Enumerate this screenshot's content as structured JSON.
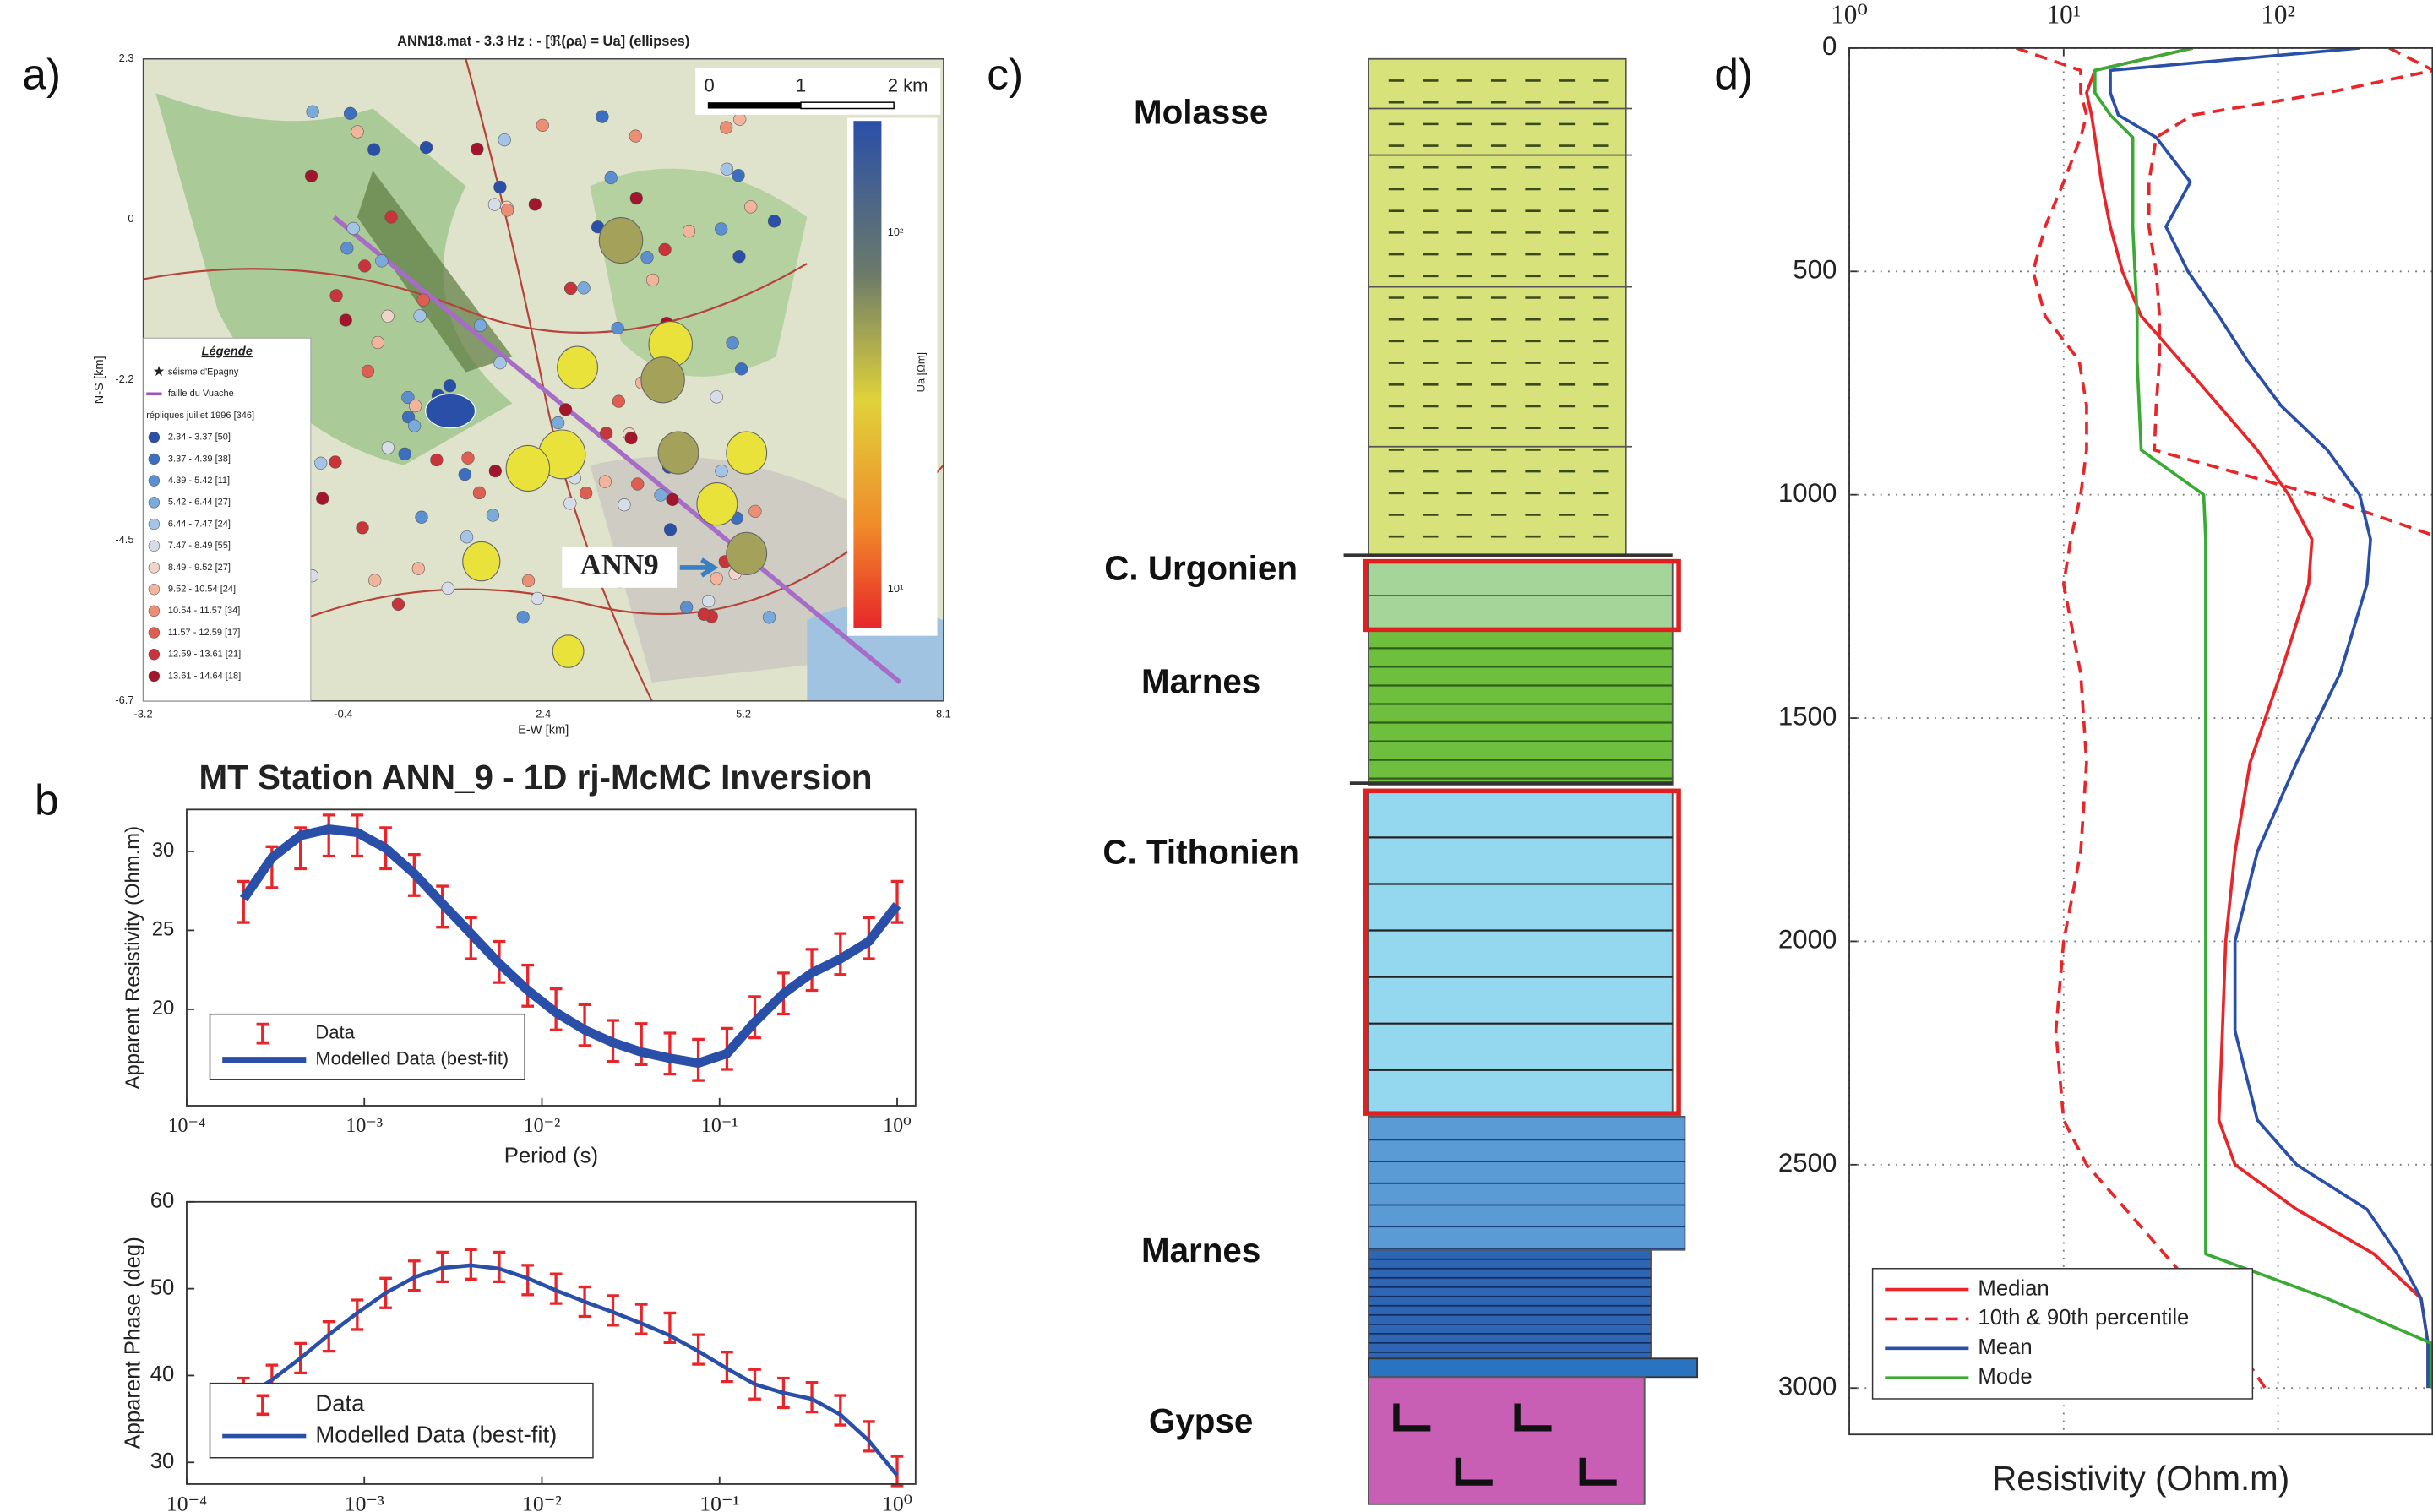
{
  "panel_labels": {
    "a": "a)",
    "b": "b",
    "c": "c)",
    "d": "d)"
  },
  "map": {
    "title": "ANN18.mat - 3.3 Hz : - [ℜ(ρa) = Ua] (ellipses)",
    "xlabel": "E-W [km]",
    "ylabel": "N-S [km]",
    "xticks": [
      "-3.2",
      "-0.4",
      "2.4",
      "5.2",
      "8.1"
    ],
    "yticks": [
      "2.3",
      "0",
      "-2.2",
      "-4.5",
      "-6.7"
    ],
    "scale_labels": [
      "0",
      "1",
      "2 km"
    ],
    "colorbar_label": "Ua [Ωm]",
    "colorbar_ticks": [
      "10²",
      "10¹"
    ],
    "legend_title": "Légende",
    "legend_items": [
      {
        "label": "séisme d'Epagny",
        "color": "#000000"
      },
      {
        "label": "faille du Vuache",
        "color": "#9b59b6"
      },
      {
        "label": "répliques juillet 1996 [346]",
        "color": "#ffffff"
      },
      {
        "label": "2.34 - 3.37 [50]",
        "color": "#2a4fa8"
      },
      {
        "label": "3.37 - 4.39 [38]",
        "color": "#3d6fc0"
      },
      {
        "label": "4.39 - 5.42 [11]",
        "color": "#5b8fd0"
      },
      {
        "label": "5.42 - 6.44 [27]",
        "color": "#7aa9dc"
      },
      {
        "label": "6.44 - 7.47 [24]",
        "color": "#a3c4e6"
      },
      {
        "label": "7.47 - 8.49 [55]",
        "color": "#d6dde8"
      },
      {
        "label": "8.49 - 9.52 [27]",
        "color": "#efd5c8"
      },
      {
        "label": "9.52 - 10.54 [24]",
        "color": "#f2b59c"
      },
      {
        "label": "10.54 - 11.57 [34]",
        "color": "#ec8e74"
      },
      {
        "label": "11.57 - 12.59 [17]",
        "color": "#de5f52"
      },
      {
        "label": "12.59 - 13.61 [21]",
        "color": "#c9343a"
      },
      {
        "label": "13.61 - 14.64 [18]",
        "color": "#a3152a"
      }
    ],
    "station_label": "ANN9"
  },
  "column": {
    "layers": [
      "Molasse",
      "C. Urgonien",
      "Marnes",
      "C. Tithonien",
      "Marnes",
      "Gypse"
    ]
  },
  "chart_data": [
    {
      "type": "line",
      "title": "MT Station ANN_9 - 1D rj-McMC Inversion",
      "ylabel": "Apparent Resistivity (Ohm.m)",
      "xlabel": "Period (s)",
      "xlog": true,
      "xlim": [
        0.0001,
        1.27
      ],
      "xticks": [
        {
          "value": 0.0001,
          "label": "10⁻⁴"
        },
        {
          "value": 0.001,
          "label": "10⁻³"
        },
        {
          "value": 0.01,
          "label": "10⁻²"
        },
        {
          "value": 0.1,
          "label": "10⁻¹"
        },
        {
          "value": 1,
          "label": "10⁰"
        }
      ],
      "ylim": [
        13.9,
        32.65
      ],
      "yticks": [
        20,
        25,
        30
      ],
      "legend": "lower-left",
      "x": [
        0.000209,
        0.000302,
        0.000437,
        0.000631,
        0.000912,
        0.00132,
        0.00191,
        0.00275,
        0.00398,
        0.00575,
        0.00832,
        0.012,
        0.0174,
        0.0251,
        0.0363,
        0.0525,
        0.0759,
        0.11,
        0.158,
        0.229,
        0.331,
        0.479,
        0.692,
        1
      ],
      "series": [
        {
          "name": "Data",
          "color": "#e8262a",
          "values": [
            26.8,
            29,
            30.2,
            31,
            31,
            30.2,
            28.5,
            26.5,
            24.5,
            23,
            21.5,
            20,
            19,
            18,
            17.8,
            17.2,
            16.8,
            17.5,
            19.5,
            21,
            22.5,
            23.5,
            24.5,
            26.8
          ],
          "errors": [
            1.3,
            1.3,
            1.3,
            1.3,
            1.3,
            1.3,
            1.3,
            1.3,
            1.3,
            1.3,
            1.3,
            1.3,
            1.3,
            1.3,
            1.3,
            1.3,
            1.3,
            1.3,
            1.3,
            1.3,
            1.3,
            1.3,
            1.3,
            1.3
          ]
        },
        {
          "name": "Modelled Data (best-fit)",
          "color": "#2a4fa8",
          "values": [
            27,
            29.6,
            31,
            31.4,
            31.2,
            30.2,
            28.6,
            26.7,
            24.8,
            22.9,
            21.2,
            19.8,
            18.7,
            17.9,
            17.3,
            16.9,
            16.6,
            17.2,
            19.2,
            21,
            22.3,
            23.2,
            24.3,
            26.6
          ]
        }
      ]
    },
    {
      "type": "line",
      "ylabel": "Apparent Phase (deg)",
      "xlog": true,
      "xlim": [
        0.0001,
        1.27
      ],
      "xticks": [
        {
          "value": 0.0001,
          "label": "10⁻⁴"
        },
        {
          "value": 0.001,
          "label": "10⁻³"
        },
        {
          "value": 0.01,
          "label": "10⁻²"
        },
        {
          "value": 0.1,
          "label": "10⁻¹"
        },
        {
          "value": 1,
          "label": "10⁰"
        }
      ],
      "ylim": [
        27.5,
        60
      ],
      "yticks": [
        30,
        40,
        50,
        60
      ],
      "legend": "lower-left",
      "x": [
        0.000209,
        0.000302,
        0.000437,
        0.000631,
        0.000912,
        0.00132,
        0.00191,
        0.00275,
        0.00398,
        0.00575,
        0.00832,
        0.012,
        0.0174,
        0.0251,
        0.0363,
        0.0525,
        0.0759,
        0.11,
        0.158,
        0.229,
        0.331,
        0.479,
        0.692,
        1
      ],
      "series": [
        {
          "name": "Data",
          "color": "#e8262a",
          "values": [
            38,
            39.5,
            42,
            44.5,
            47,
            49.5,
            51.5,
            52.5,
            52.8,
            52.5,
            51,
            50,
            48.5,
            47.5,
            46.5,
            45.5,
            43,
            41,
            39,
            38,
            37.5,
            36,
            33,
            29
          ],
          "errors": [
            1.7,
            1.7,
            1.7,
            1.7,
            1.7,
            1.7,
            1.7,
            1.7,
            1.7,
            1.7,
            1.7,
            1.7,
            1.7,
            1.7,
            1.7,
            1.7,
            1.7,
            1.7,
            1.7,
            1.7,
            1.7,
            1.7,
            1.7,
            1.7
          ]
        },
        {
          "name": "Modelled Data (best-fit)",
          "color": "#2a4fa8",
          "values": [
            37.5,
            39.5,
            42,
            44.7,
            47.2,
            49.5,
            51.3,
            52.4,
            52.7,
            52.3,
            51.2,
            49.8,
            48.5,
            47.3,
            46,
            44.6,
            42.8,
            40.8,
            39,
            38,
            37.3,
            35.5,
            32.5,
            28.5
          ]
        }
      ]
    },
    {
      "type": "line",
      "xlabel": "Resistivity (Ohm.m)",
      "xlog": true,
      "xaxis_top": true,
      "yinvert": true,
      "grid": true,
      "xlim": [
        1,
        525
      ],
      "xticks": [
        {
          "value": 1,
          "label": "10⁰"
        },
        {
          "value": 10,
          "label": "10¹"
        },
        {
          "value": 100,
          "label": "10²"
        }
      ],
      "ylim": [
        0,
        3104
      ],
      "yticks": [
        0,
        500,
        1000,
        1500,
        2000,
        2500,
        3000
      ],
      "legend": "lower-left",
      "depth": [
        0,
        50,
        100,
        150,
        200,
        300,
        400,
        500,
        600,
        700,
        800,
        900,
        1000,
        1100,
        1200,
        1400,
        1600,
        1800,
        2000,
        2200,
        2400,
        2500,
        2600,
        2700,
        2800,
        2900,
        3000
      ],
      "series": [
        {
          "name": "Median",
          "color": "#e8262a",
          "values": [
            40,
            14,
            12.8,
            13.5,
            14,
            15,
            16.5,
            18.8,
            23,
            35,
            53,
            80,
            112,
            144,
            139,
            103,
            74,
            63,
            57,
            55,
            53,
            63,
            122,
            280,
            465,
            500,
            500
          ]
        },
        {
          "name": "10th & 90th percentile",
          "color": "#e8262a",
          "dash": true,
          "values": [
            6,
            12,
            12,
            12.8,
            12,
            10,
            8.2,
            7.2,
            8.2,
            11.8,
            12.8,
            12.8,
            12,
            10.8,
            10,
            12,
            12.8,
            12,
            10,
            9.2,
            10,
            12.8,
            19.5,
            29.5,
            45,
            63,
            87
          ],
          "values_90": [
            330,
            530,
            170,
            40,
            27,
            25,
            25,
            27,
            28,
            28,
            27,
            26.5,
            150,
            600,
            600,
            600,
            600,
            600,
            600,
            600,
            600,
            600,
            600,
            600,
            600,
            600,
            600
          ]
        },
        {
          "name": "Mean",
          "color": "#2a4fa8",
          "values": [
            240,
            16.5,
            16.5,
            18,
            27,
            39,
            30,
            38,
            53,
            72,
            103,
            170,
            240,
            270,
            260,
            195,
            122,
            80,
            63,
            63,
            80,
            122,
            260,
            360,
            465,
            500,
            500
          ]
        },
        {
          "name": "Mode",
          "color": "#3aaa35",
          "values": [
            40,
            14,
            14,
            16.5,
            21,
            21,
            21,
            21.5,
            22,
            22,
            22.5,
            23,
            45,
            46,
            46,
            46,
            46,
            46,
            46,
            46,
            46,
            46,
            46,
            46,
            170,
            520,
            520
          ]
        }
      ]
    }
  ]
}
